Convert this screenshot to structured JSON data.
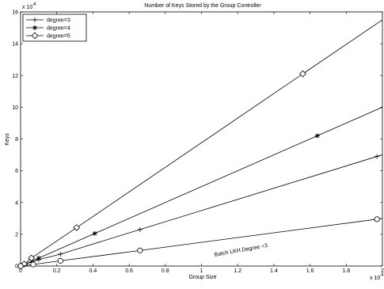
{
  "chart_data": {
    "type": "line",
    "title": "Number of Keys Stored by the Group Controller",
    "xlabel": "Group Size",
    "ylabel": "Keys",
    "xlim": [
      0,
      2
    ],
    "ylim": [
      0,
      16
    ],
    "x_ticks": [
      0,
      0.2,
      0.4,
      0.6,
      0.8,
      1,
      1.2,
      1.4,
      1.6,
      1.8,
      2
    ],
    "x_tick_labels": [
      "0",
      "0.2",
      "0.4",
      "0.6",
      "0.8",
      "1",
      "1.2",
      "1.4",
      "1.6",
      "1.8",
      "2"
    ],
    "y_ticks": [
      0,
      2,
      4,
      6,
      8,
      10,
      12,
      14,
      16
    ],
    "y_tick_labels": [
      "0",
      "2",
      "4",
      "6",
      "8",
      "10",
      "12",
      "14",
      "16"
    ],
    "x_multiplier_base": "x 10",
    "x_multiplier_exp": "4",
    "y_multiplier_base": "x 10",
    "y_multiplier_exp": "4",
    "grid": false,
    "legend_position": "top-left",
    "series": [
      {
        "name": "degree=3",
        "marker": "plus",
        "x": [
          0,
          0.02,
          0.06,
          0.1,
          0.22,
          0.66,
          1.97
        ],
        "y": [
          0,
          0.1,
          0.25,
          0.4,
          0.75,
          2.3,
          6.9
        ],
        "extend_to_x": 2,
        "extend_to_y": 7.0
      },
      {
        "name": "degree=4",
        "marker": "star",
        "x": [
          0,
          0.02,
          0.1,
          0.41,
          1.64
        ],
        "y": [
          0,
          0.1,
          0.5,
          2.05,
          8.2
        ],
        "extend_to_x": 2,
        "extend_to_y": 10.0
      },
      {
        "name": "degree=5",
        "marker": "diamond",
        "x": [
          0,
          0.02,
          0.06,
          0.31,
          1.56
        ],
        "y": [
          0,
          0.12,
          0.5,
          2.42,
          12.1
        ],
        "extend_to_x": 2,
        "extend_to_y": 15.5
      },
      {
        "name": "",
        "marker": "circle",
        "x": [
          0,
          0.07,
          0.22,
          0.66,
          1.97
        ],
        "y": [
          0,
          0.1,
          0.33,
          0.98,
          2.95
        ],
        "extend_to_x": 2,
        "extend_to_y": 3.0
      }
    ],
    "annotations": [
      {
        "text": "Batch LKH Degree =3",
        "x": 1.22,
        "y": 0.9,
        "rotate": -10
      }
    ]
  }
}
